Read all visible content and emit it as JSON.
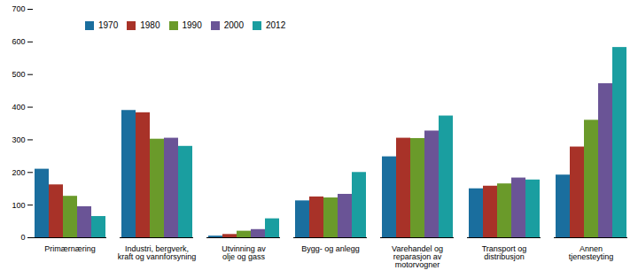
{
  "chart_data": {
    "type": "bar",
    "categories": [
      "Primærnæring",
      "Industri, bergverk,\nkraft og vannforsyning",
      "Utvinning av\nolje og gass",
      "Bygg- og anlegg",
      "Varehandel og\nreparasjon av\nmotorvogner",
      "Transport og\ndistribusjon",
      "Annen\ntjenesteyting"
    ],
    "series": [
      {
        "name": "1970",
        "color": "#1a6e9e",
        "values": [
          210,
          390,
          5,
          113,
          248,
          150,
          192
        ]
      },
      {
        "name": "1980",
        "color": "#a83228",
        "values": [
          162,
          383,
          10,
          125,
          305,
          158,
          278
        ]
      },
      {
        "name": "1990",
        "color": "#6a9a2a",
        "values": [
          127,
          302,
          20,
          122,
          304,
          165,
          360
        ]
      },
      {
        "name": "2000",
        "color": "#6a5496",
        "values": [
          95,
          305,
          25,
          133,
          327,
          183,
          472
        ]
      },
      {
        "name": "2012",
        "color": "#1a9ea0",
        "values": [
          65,
          280,
          58,
          200,
          373,
          177,
          583
        ]
      }
    ],
    "ylim": [
      0,
      700
    ],
    "yticks": [
      0,
      100,
      200,
      300,
      400,
      500,
      600,
      700
    ],
    "grid": false,
    "legend": "upper left"
  }
}
